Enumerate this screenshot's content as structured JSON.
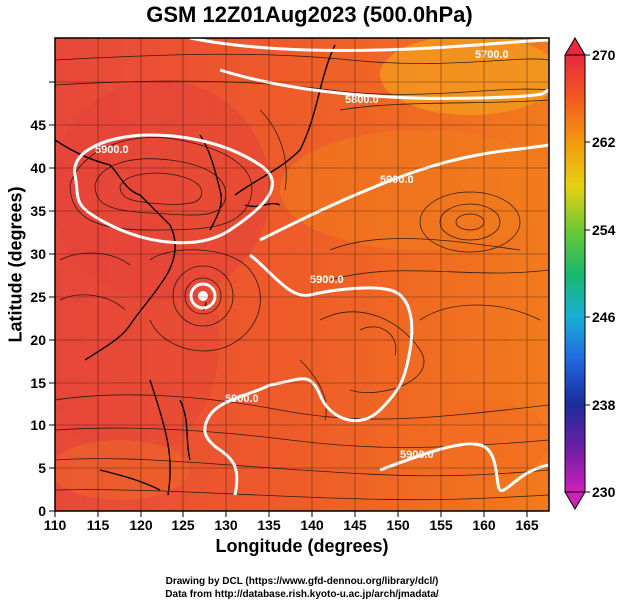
{
  "title": "GSM 12Z01Aug2023 (500.0hPa)",
  "x_axis": {
    "label": "Longitude (degrees)",
    "ticks": [
      "110",
      "115",
      "120",
      "125",
      "130",
      "135",
      "140",
      "145",
      "150",
      "155",
      "160",
      "165"
    ]
  },
  "y_axis": {
    "label": "Latitude  (degrees)",
    "ticks": [
      "0",
      "5",
      "10",
      "15",
      "20",
      "25",
      "30",
      "35",
      "40",
      "45"
    ]
  },
  "colorbar": {
    "ticks": [
      "270",
      "262",
      "254",
      "246",
      "238",
      "230"
    ],
    "colors": [
      "#e8283c",
      "#f25a1e",
      "#f39a10",
      "#e7d012",
      "#6ec832",
      "#18b86c",
      "#1aaed8",
      "#2066e0",
      "#1a2c9a",
      "#6e1ea6",
      "#d020b8"
    ]
  },
  "contours": [
    "5700.0",
    "5800.0",
    "5900.0",
    "5900.0",
    "5900.0",
    "5900.0",
    "5900.0"
  ],
  "credits": [
    "Drawing by DCL (https://www.gfd-dennou.org/library/dcl/)",
    "Data from http://database.rish.kyoto-u.ac.jp/arch/jmadata/"
  ]
}
